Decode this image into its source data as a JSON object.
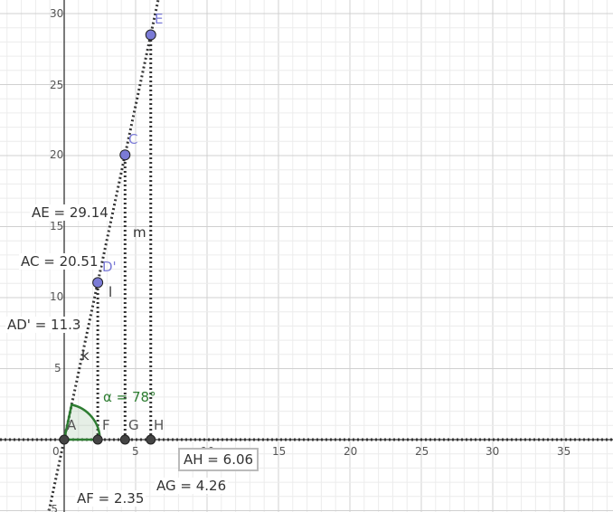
{
  "view": {
    "x_ticks": [
      "0",
      "5",
      "10",
      "15",
      "20",
      "25",
      "30",
      "35"
    ],
    "y_ticks": [
      "5",
      "10",
      "15",
      "20",
      "25",
      "30",
      "-5"
    ],
    "grid": true,
    "axis_color": "#333333",
    "point_color": "#7b7bd6",
    "angle_color": "#2e7d32"
  },
  "points": {
    "A": {
      "label": "A",
      "x": 0,
      "y": 0
    },
    "F": {
      "label": "F",
      "x": 2.35,
      "y": 0
    },
    "G": {
      "label": "G",
      "x": 4.26,
      "y": 0
    },
    "H": {
      "label": "H",
      "x": 6.06,
      "y": 0
    },
    "D": {
      "label": "D'",
      "x": 2.35,
      "y": 11.06
    },
    "C": {
      "label": "C",
      "x": 4.26,
      "y": 20.05
    },
    "E": {
      "label": "E",
      "x": 6.06,
      "y": 28.5
    }
  },
  "lines": {
    "k": "k",
    "l": "l",
    "m": "m"
  },
  "angle": {
    "label": "α = 78°",
    "degrees": 78
  },
  "measures": {
    "AE": "AE = 29.14",
    "AC": "AC = 20.51",
    "AD": "AD' = 11.3",
    "AF": "AF = 2.35",
    "AG": "AG = 4.26",
    "AH": "AH = 6.06"
  }
}
